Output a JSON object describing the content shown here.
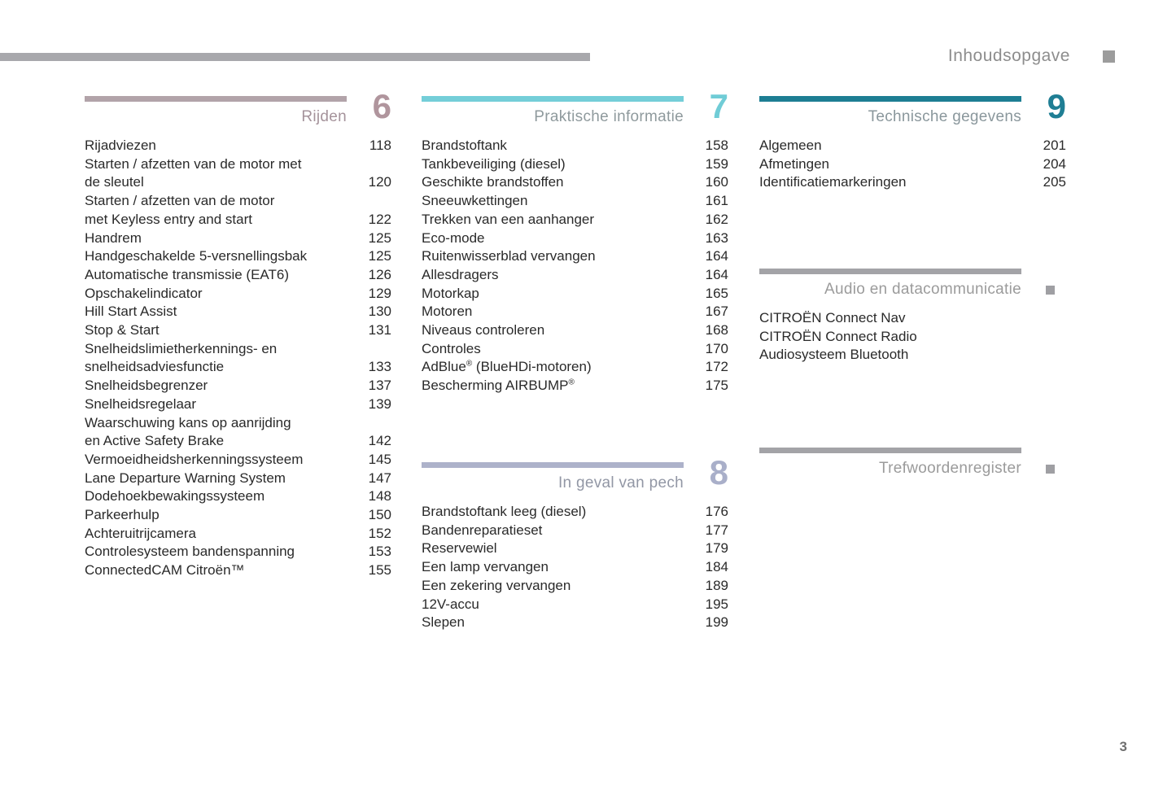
{
  "header": {
    "title": "Inhoudsopgave"
  },
  "footer": {
    "page_number": "3"
  },
  "rule_color": "#a8a8ac",
  "sections": [
    {
      "id": "rijden",
      "title": "Rijden",
      "number": "6",
      "colors": {
        "bar": "#b2a3a9",
        "number": "#b0959d",
        "title": "#a5939b"
      },
      "items": [
        {
          "label": "Rijadviezen",
          "page": "118"
        },
        {
          "label": "Starten / afzetten van de motor met\nde sleutel",
          "page": "120"
        },
        {
          "label": "Starten / afzetten van de motor\nmet Keyless entry and start",
          "page": "122"
        },
        {
          "label": "Handrem",
          "page": "125"
        },
        {
          "label": "Handgeschakelde 5-versnellingsbak",
          "page": "125"
        },
        {
          "label": "Automatische transmissie (EAT6)",
          "page": "126"
        },
        {
          "label": "Opschakelindicator",
          "page": "129"
        },
        {
          "label": "Hill Start Assist",
          "page": "130"
        },
        {
          "label": "Stop & Start",
          "page": "131"
        },
        {
          "label": "Snelheidslimietherkennings- en\nsnelheidsadviesfunctie",
          "page": "133"
        },
        {
          "label": "Snelheidsbegrenzer",
          "page": "137"
        },
        {
          "label": "Snelheidsregelaar",
          "page": "139"
        },
        {
          "label": "Waarschuwing kans op aanrijding\nen Active Safety Brake",
          "page": "142"
        },
        {
          "label": "Vermoeidheidsherkenningssysteem",
          "page": "145"
        },
        {
          "label": "Lane Departure Warning System",
          "page": "147"
        },
        {
          "label": "Dodehoekbewakingssysteem",
          "page": "148"
        },
        {
          "label": "Parkeerhulp",
          "page": "150"
        },
        {
          "label": "Achteruitrijcamera",
          "page": "152"
        },
        {
          "label": "Controlesysteem bandenspanning",
          "page": "153"
        },
        {
          "label": "ConnectedCAM Citroën™",
          "page": "155"
        }
      ]
    },
    {
      "id": "praktische-informatie",
      "title": "Praktische informatie",
      "number": "7",
      "colors": {
        "bar": "#74ced8",
        "number": "#70ccd6",
        "title": "#8f9a9d"
      },
      "items": [
        {
          "label": "Brandstoftank",
          "page": "158"
        },
        {
          "label": "Tankbeveiliging (diesel)",
          "page": "159"
        },
        {
          "label": "Geschikte brandstoffen",
          "page": "160"
        },
        {
          "label": "Sneeuwkettingen",
          "page": "161"
        },
        {
          "label": "Trekken van een aanhanger",
          "page": "162"
        },
        {
          "label": "Eco-mode",
          "page": "163"
        },
        {
          "label": "Ruitenwisserblad vervangen",
          "page": "164"
        },
        {
          "label": "Allesdragers",
          "page": "164"
        },
        {
          "label": "Motorkap",
          "page": "165"
        },
        {
          "label": "Motoren",
          "page": "167"
        },
        {
          "label": "Niveaus controleren",
          "page": "168"
        },
        {
          "label": "Controles",
          "page": "170"
        },
        {
          "label": "AdBlue® (BlueHDi-motoren)",
          "page": "172"
        },
        {
          "label": "Bescherming AIRBUMP®",
          "page": "175"
        }
      ]
    },
    {
      "id": "in-geval-van-pech",
      "title": "In geval van pech",
      "number": "8",
      "colors": {
        "bar": "#adb2ca",
        "number": "#a9afc9",
        "title": "#9297a5"
      },
      "items": [
        {
          "label": "Brandstoftank leeg (diesel)",
          "page": "176"
        },
        {
          "label": "Bandenreparatieset",
          "page": "177"
        },
        {
          "label": "Reservewiel",
          "page": "179"
        },
        {
          "label": "Een lamp vervangen",
          "page": "184"
        },
        {
          "label": "Een zekering vervangen",
          "page": "189"
        },
        {
          "label": "12V-accu",
          "page": "195"
        },
        {
          "label": "Slepen",
          "page": "199"
        }
      ]
    },
    {
      "id": "technische-gegevens",
      "title": "Technische gegevens",
      "number": "9",
      "colors": {
        "bar": "#1d7e93",
        "number": "#1f7e94",
        "title": "#8a979c"
      },
      "items": [
        {
          "label": "Algemeen",
          "page": "201"
        },
        {
          "label": "Afmetingen",
          "page": "204"
        },
        {
          "label": "Identificatiemarkeringen",
          "page": "205"
        }
      ]
    },
    {
      "id": "audio-en-datacommunicatie",
      "title": "Audio en datacommunicatie",
      "number": "",
      "colors": {
        "bar": "#a3a3a7",
        "title": "#9b9b9b",
        "marker": "#9f9fa3"
      },
      "items": [
        {
          "label": "CITROËN Connect Nav",
          "page": ""
        },
        {
          "label": "CITROËN Connect Radio",
          "page": ""
        },
        {
          "label": "Audiosysteem Bluetooth",
          "page": ""
        }
      ]
    },
    {
      "id": "trefwoordenregister",
      "title": "Trefwoordenregister",
      "number": "",
      "colors": {
        "bar": "#a3a3a7",
        "title": "#9b9b9b",
        "marker": "#9f9fa3"
      },
      "items": []
    }
  ]
}
